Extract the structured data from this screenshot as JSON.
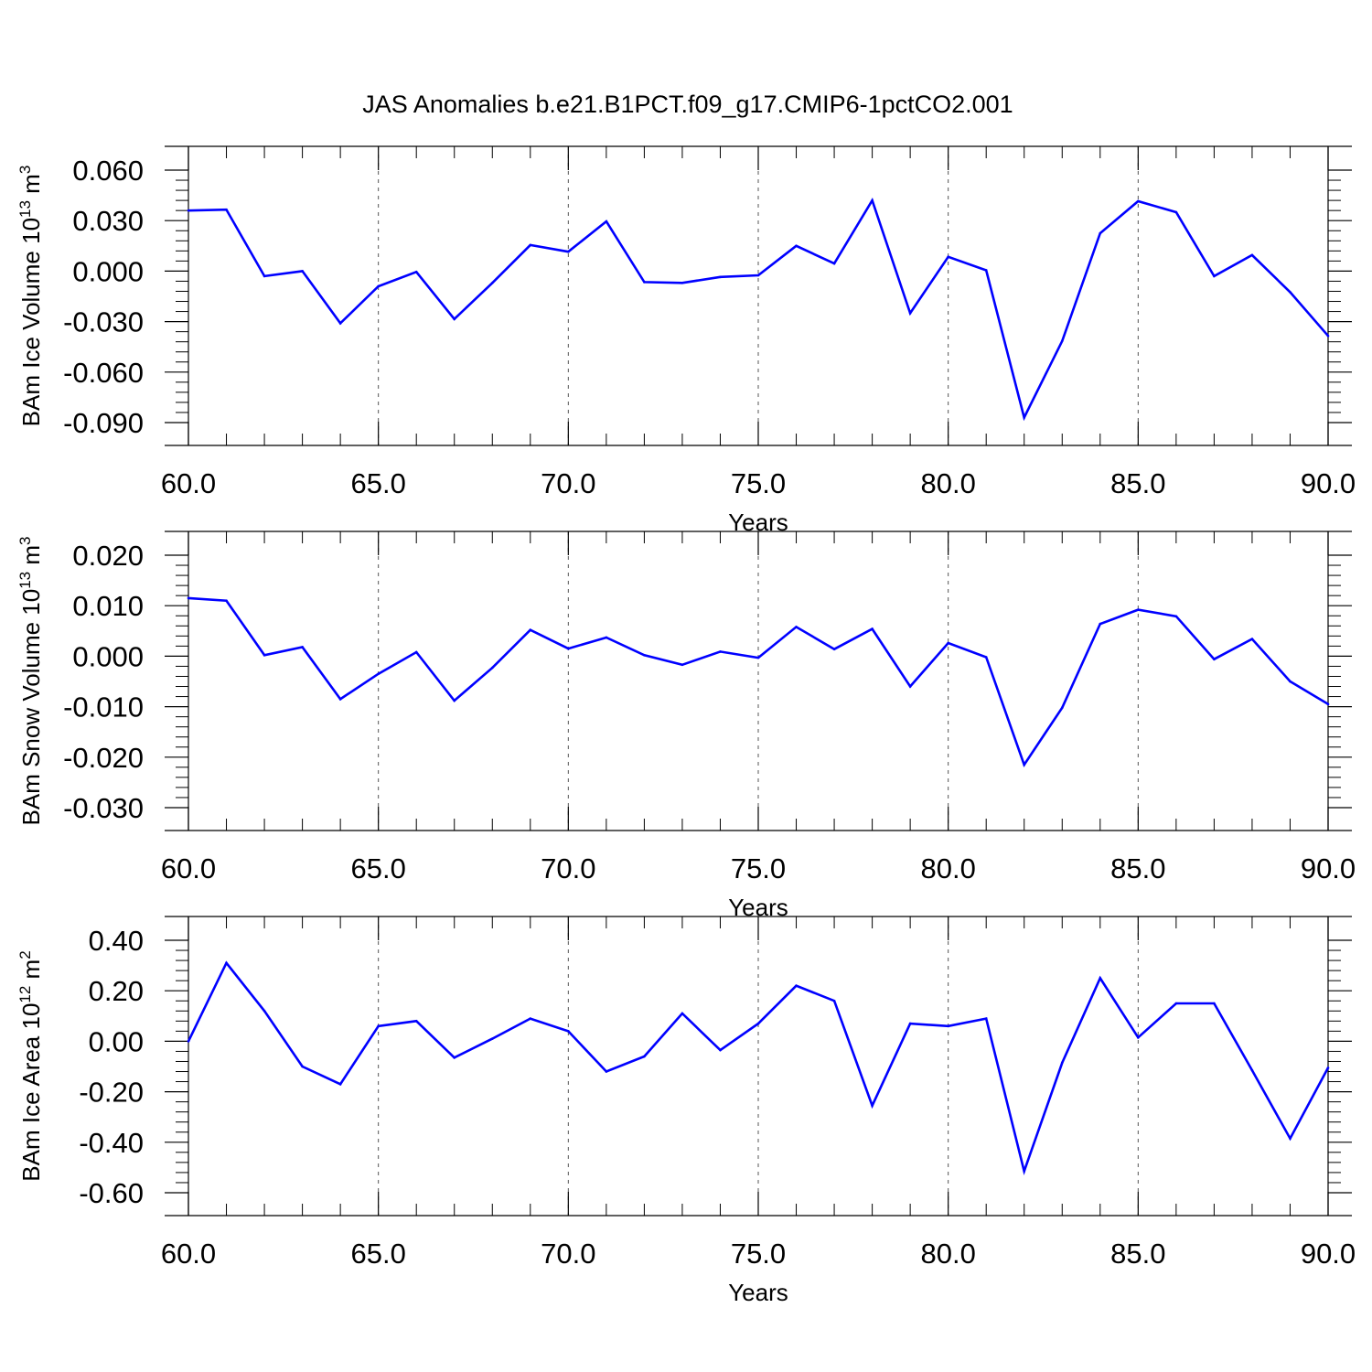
{
  "title": "JAS Anomalies b.e21.B1PCT.f09_g17.CMIP6-1pctCO2.001",
  "colors": {
    "line": "#0000ff",
    "axis": "#000000",
    "grid": "#555555",
    "background": "#ffffff"
  },
  "chart_data": [
    {
      "type": "line",
      "title": "",
      "ylabel": "BAm Ice Volume",
      "yunit": {
        "base": "10",
        "exp": "13",
        "unit": "m",
        "unit_exp": "3"
      },
      "xlabel": "Years",
      "xlim": [
        60,
        90
      ],
      "ylim": [
        -0.09,
        0.06
      ],
      "yticks": [
        0.06,
        0.03,
        0.0,
        -0.03,
        -0.06,
        -0.09
      ],
      "ytick_labels": [
        "0.060",
        "0.030",
        "0.000",
        "-0.030",
        "-0.060",
        "-0.090"
      ],
      "xticks": [
        60,
        65,
        70,
        75,
        80,
        85,
        90
      ],
      "xtick_labels": [
        "60.0",
        "65.0",
        "70.0",
        "75.0",
        "80.0",
        "85.0",
        "90.0"
      ],
      "grid": "vertical dashed at major x ticks",
      "x": [
        60,
        61,
        62,
        63,
        64,
        65,
        66,
        67,
        68,
        69,
        70,
        71,
        72,
        73,
        74,
        75,
        76,
        77,
        78,
        79,
        80,
        81,
        82,
        83,
        84,
        85,
        86,
        87,
        88,
        89,
        90
      ],
      "series": [
        {
          "values": [
            0.036,
            0.0365,
            -0.003,
            0.0,
            -0.031,
            -0.009,
            -0.0005,
            -0.0285,
            -0.007,
            0.0155,
            0.0115,
            0.0295,
            -0.0065,
            -0.007,
            -0.0035,
            -0.0025,
            0.015,
            0.0045,
            0.042,
            -0.025,
            0.0085,
            0.0005,
            -0.087,
            -0.0415,
            0.0225,
            0.0415,
            0.035,
            -0.003,
            0.0095,
            -0.0125,
            -0.0385
          ]
        }
      ]
    },
    {
      "type": "line",
      "title": "",
      "ylabel": "BAm Snow Volume",
      "yunit": {
        "base": "10",
        "exp": "13",
        "unit": "m",
        "unit_exp": "3"
      },
      "xlabel": "Years",
      "xlim": [
        60,
        90
      ],
      "ylim": [
        -0.03,
        0.02
      ],
      "yticks": [
        0.02,
        0.01,
        0.0,
        -0.01,
        -0.02,
        -0.03
      ],
      "ytick_labels": [
        "0.020",
        "0.010",
        "0.000",
        "-0.010",
        "-0.020",
        "-0.030"
      ],
      "xticks": [
        60,
        65,
        70,
        75,
        80,
        85,
        90
      ],
      "xtick_labels": [
        "60.0",
        "65.0",
        "70.0",
        "75.0",
        "80.0",
        "85.0",
        "90.0"
      ],
      "grid": "vertical dashed at major x ticks",
      "x": [
        60,
        61,
        62,
        63,
        64,
        65,
        66,
        67,
        68,
        69,
        70,
        71,
        72,
        73,
        74,
        75,
        76,
        77,
        78,
        79,
        80,
        81,
        82,
        83,
        84,
        85,
        86,
        87,
        88,
        89,
        90
      ],
      "series": [
        {
          "values": [
            0.0115,
            0.011,
            0.0002,
            0.0018,
            -0.0085,
            -0.0035,
            0.0008,
            -0.0088,
            -0.0023,
            0.0052,
            0.0015,
            0.0037,
            0.0002,
            -0.0017,
            0.0009,
            -0.0003,
            0.0058,
            0.0014,
            0.0054,
            -0.006,
            0.0026,
            -0.0002,
            -0.0215,
            -0.0102,
            0.0064,
            0.0092,
            0.0079,
            -0.0006,
            0.0034,
            -0.005,
            -0.0095
          ]
        }
      ]
    },
    {
      "type": "line",
      "title": "",
      "ylabel": "BAm Ice Area",
      "yunit": {
        "base": "10",
        "exp": "12",
        "unit": "m",
        "unit_exp": "2"
      },
      "xlabel": "Years",
      "xlim": [
        60,
        90
      ],
      "ylim": [
        -0.6,
        0.4
      ],
      "yticks": [
        0.4,
        0.2,
        0.0,
        -0.2,
        -0.4,
        -0.6
      ],
      "ytick_labels": [
        "0.40",
        "0.20",
        "0.00",
        "-0.20",
        "-0.40",
        "-0.60"
      ],
      "xticks": [
        60,
        65,
        70,
        75,
        80,
        85,
        90
      ],
      "xtick_labels": [
        "60.0",
        "65.0",
        "70.0",
        "75.0",
        "80.0",
        "85.0",
        "90.0"
      ],
      "grid": "vertical dashed at major x ticks",
      "x": [
        60,
        61,
        62,
        63,
        64,
        65,
        66,
        67,
        68,
        69,
        70,
        71,
        72,
        73,
        74,
        75,
        76,
        77,
        78,
        79,
        80,
        81,
        82,
        83,
        84,
        85,
        86,
        87,
        88,
        89,
        90
      ],
      "series": [
        {
          "values": [
            0.0,
            0.31,
            0.12,
            -0.1,
            -0.17,
            0.06,
            0.08,
            -0.065,
            0.01,
            0.09,
            0.04,
            -0.12,
            -0.06,
            0.11,
            -0.035,
            0.07,
            0.22,
            0.16,
            -0.255,
            0.07,
            0.06,
            0.09,
            -0.515,
            -0.085,
            0.25,
            0.015,
            0.15,
            0.15,
            -0.115,
            -0.385,
            -0.105
          ]
        }
      ]
    }
  ]
}
